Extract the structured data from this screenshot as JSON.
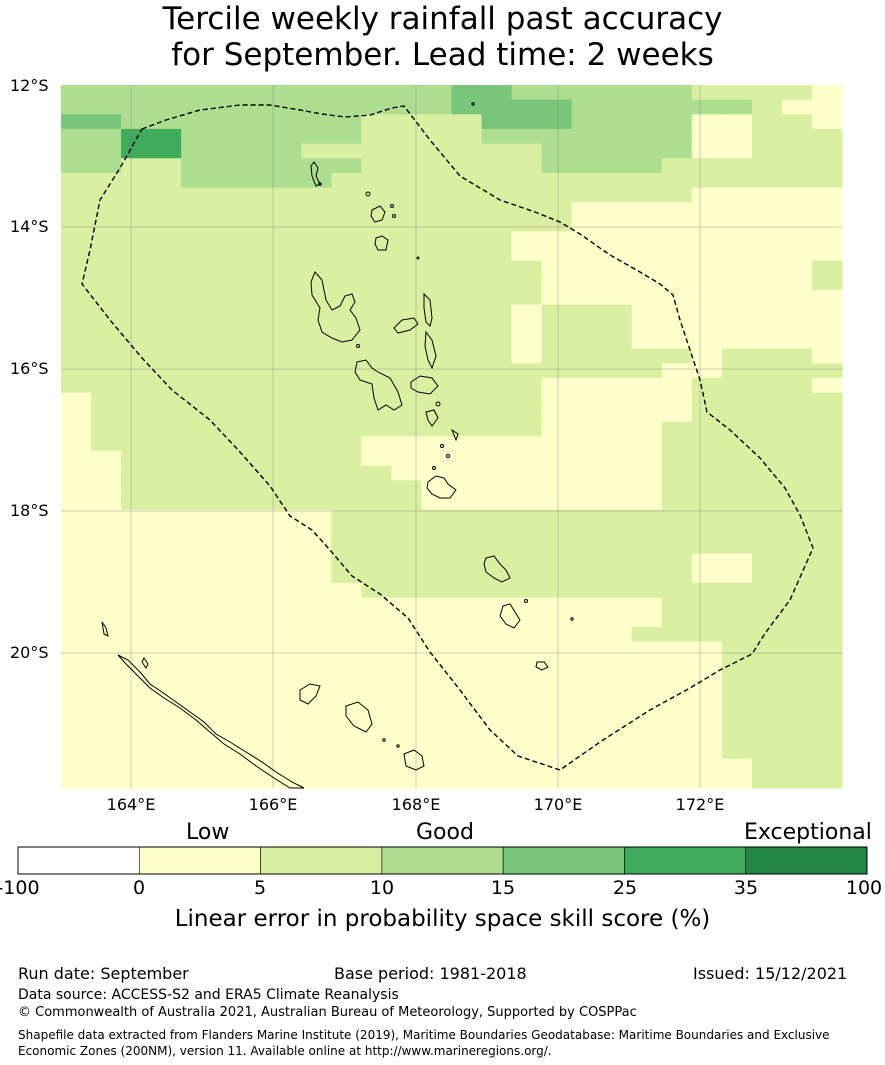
{
  "title": {
    "line1": "Tercile weekly rainfall past accuracy",
    "line2": "for September. Lead time: 2 weeks"
  },
  "map": {
    "lat_labels": [
      "12°S",
      "14°S",
      "16°S",
      "18°S",
      "20°S"
    ],
    "lon_labels": [
      "164°E",
      "166°E",
      "168°E",
      "170°E",
      "172°E"
    ],
    "grid_rows": [
      "33333333333334433333322221",
      "33333333333334444333333211",
      "44333333332222444333311221",
      "33553333332222333333311222",
      "33553333222222223333311222",
      "33223333332222223333222222",
      "22223333322222222222222222",
      "22222222222222222222211111",
      "22222222222222222111111111",
      "22222222222222222111111111",
      "22222222222222211111111111",
      "22222222222222211111111111",
      "22222222222222221111111112",
      "22222222222222221111111112",
      "22222222222222221111111111",
      "22222222222222212221111111",
      "22222222222222212221111111",
      "22222222222222212221111111",
      "22222222222222212222212221",
      "22222222222222222222112222",
      "22222222222222221111122221",
      "12222222222222221111122222",
      "12222222222222221111122222",
      "12222222222222221111222222",
      "12222222221111111111222222",
      "11222222221111111111222222",
      "11222222222111111111222222",
      "11222222222211111111222222",
      "11222222222211111111222222",
      "11111111122222222222222222",
      "11111111122222222222222222",
      "11111111122222222222222222",
      "11111111122222222222211222",
      "11111111122222222222211222",
      "11111111112222222222222222",
      "11111111111111111111222222",
      "11111111111111111111222222",
      "11111111111111111112222222",
      "11111111111111111111112222",
      "11111111111111111111112222",
      "11111111111111111111112222",
      "11111111111111111111112222",
      "11111111111111111111112222",
      "11111111111111111111112222",
      "11111111111111111111112222",
      "11111111111111111111112222",
      "11111111111111111111111222",
      "11111111111111111111111222"
    ]
  },
  "colorbar": {
    "category_labels": [
      "Low",
      "Good",
      "Exceptional"
    ],
    "ticks": [
      "-100",
      "0",
      "5",
      "10",
      "15",
      "25",
      "35",
      "100"
    ],
    "colors": [
      "#ffffff",
      "#ffffcc",
      "#d9f0a3",
      "#addd8e",
      "#78c679",
      "#41ab5d",
      "#238443"
    ],
    "title": "Linear error in probability space skill score (%)"
  },
  "footer": {
    "run_date": "Run date: September",
    "base_period": "Base period: 1981-2018",
    "issued": "Issued: 15/12/2021",
    "data_source": "Data source: ACCESS-S2 and ERA5 Climate Reanalysis",
    "copyright": "© Commonwealth of Australia 2021, Australian Bureau of Meteorology, Supported by COSPPac",
    "shapefile_note": "Shapefile data extracted from Flanders Marine Institute (2019), Maritime Boundaries Geodatabase: Maritime Boundaries and Exclusive Economic Zones (200NM), version 11. Available online at http://www.marineregions.org/."
  }
}
